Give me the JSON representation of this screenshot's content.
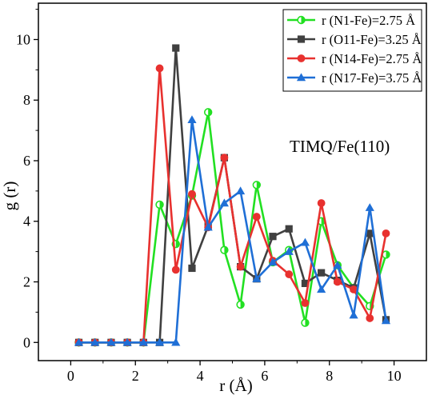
{
  "chart_data": {
    "type": "line",
    "annotation": "TIMQ/Fe(110)",
    "xlabel": "r (Å)",
    "ylabel": "g (r)",
    "xlim": [
      -1,
      11
    ],
    "ylim": [
      -0.6,
      11.2
    ],
    "xticks": [
      0,
      2,
      4,
      6,
      8,
      10
    ],
    "yticks": [
      0,
      2,
      4,
      6,
      8,
      10
    ],
    "legend_position": "top-right",
    "x": [
      0.25,
      0.75,
      1.25,
      1.75,
      2.25,
      2.75,
      3.25,
      3.75,
      4.25,
      4.75,
      5.25,
      5.75,
      6.25,
      6.75,
      7.25,
      7.75,
      8.25,
      8.75,
      9.25,
      9.75
    ],
    "series": [
      {
        "name": "r (N1-Fe)=2.75 Å",
        "color": "#22e022",
        "marker": "half-circle",
        "values": [
          0,
          0,
          0,
          0,
          0,
          4.55,
          3.25,
          4.85,
          7.6,
          3.05,
          1.25,
          5.2,
          2.65,
          3.05,
          0.65,
          4.0,
          2.55,
          1.8,
          1.2,
          2.9
        ]
      },
      {
        "name": "r (O11-Fe)=3.25 Å",
        "color": "#404040",
        "marker": "square",
        "values": [
          0,
          0,
          0,
          0,
          0,
          0,
          9.72,
          2.45,
          3.85,
          6.1,
          2.5,
          2.1,
          3.5,
          3.75,
          1.95,
          2.3,
          2.05,
          1.8,
          3.6,
          0.75
        ]
      },
      {
        "name": "r (N14-Fe)=2.75 Å",
        "color": "#e8312f",
        "marker": "circle",
        "values": [
          0,
          0,
          0,
          0,
          0,
          9.05,
          2.4,
          4.9,
          3.8,
          6.1,
          2.5,
          4.15,
          2.7,
          2.25,
          1.3,
          4.6,
          2.0,
          1.75,
          0.8,
          3.6
        ]
      },
      {
        "name": "r (N17-Fe)=3.75 Å",
        "color": "#1f6fd6",
        "marker": "triangle",
        "values": [
          0,
          0,
          0,
          0,
          0,
          0,
          0,
          7.35,
          3.8,
          4.6,
          5.0,
          2.1,
          2.65,
          3.0,
          3.3,
          1.75,
          2.55,
          0.9,
          4.45,
          0.72
        ]
      }
    ]
  }
}
